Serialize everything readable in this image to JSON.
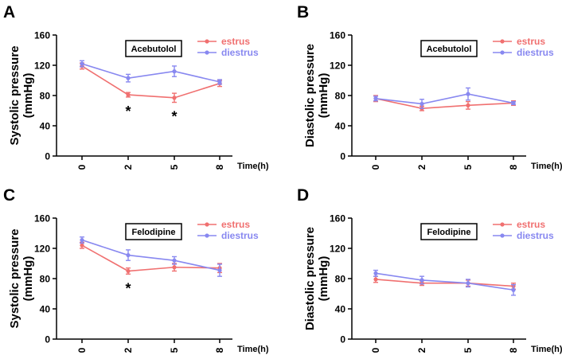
{
  "colors": {
    "estrus": "#f07070",
    "diestrus": "#8888f0",
    "axis": "#000000"
  },
  "chart_data": [
    {
      "panel": "A",
      "type": "line",
      "drug": "Acebutolol",
      "ylabel_line1": "Systolic pressure",
      "ylabel_line2": "(mmHg)",
      "xlabel": "Time(h)",
      "categories": [
        "0",
        "2",
        "5",
        "8"
      ],
      "ylim": [
        0,
        160
      ],
      "yticks": [
        "0",
        "40",
        "80",
        "120",
        "160"
      ],
      "series": [
        {
          "name": "estrus",
          "values": [
            119,
            81,
            77,
            96
          ],
          "errors": [
            4,
            3,
            6,
            4
          ]
        },
        {
          "name": "diestrus",
          "values": [
            122,
            103,
            112,
            98
          ],
          "errors": [
            4,
            5,
            7,
            3
          ]
        }
      ],
      "significance": [
        {
          "category": "2",
          "label": "*"
        },
        {
          "category": "5",
          "label": "*"
        }
      ]
    },
    {
      "panel": "B",
      "type": "line",
      "drug": "Acebutolol",
      "ylabel_line1": "Diastolic pressure",
      "ylabel_line2": "(mmHg)",
      "xlabel": "Time(h)",
      "categories": [
        "0",
        "2",
        "5",
        "8"
      ],
      "ylim": [
        0,
        160
      ],
      "yticks": [
        "0",
        "40",
        "80",
        "120",
        "160"
      ],
      "series": [
        {
          "name": "estrus",
          "values": [
            76,
            63,
            67,
            70
          ],
          "errors": [
            4,
            3,
            5,
            3
          ]
        },
        {
          "name": "diestrus",
          "values": [
            76,
            69,
            82,
            70
          ],
          "errors": [
            3,
            6,
            8,
            2
          ]
        }
      ],
      "significance": []
    },
    {
      "panel": "C",
      "type": "line",
      "drug": "Felodipine",
      "ylabel_line1": "Systolic pressure",
      "ylabel_line2": "(mmHg)",
      "xlabel": "Time(h)",
      "categories": [
        "0",
        "2",
        "5",
        "8"
      ],
      "ylim": [
        0,
        160
      ],
      "yticks": [
        "0",
        "40",
        "80",
        "120",
        "160"
      ],
      "series": [
        {
          "name": "estrus",
          "values": [
            124,
            90,
            95,
            94
          ],
          "errors": [
            4,
            4,
            5,
            6
          ]
        },
        {
          "name": "diestrus",
          "values": [
            131,
            111,
            104,
            91
          ],
          "errors": [
            4,
            7,
            5,
            8
          ]
        }
      ],
      "significance": [
        {
          "category": "2",
          "label": "*"
        }
      ]
    },
    {
      "panel": "D",
      "type": "line",
      "drug": "Felodipine",
      "ylabel_line1": "Diastolic pressure",
      "ylabel_line2": "(mmHg)",
      "xlabel": "Time(h)",
      "categories": [
        "0",
        "2",
        "5",
        "8"
      ],
      "ylim": [
        0,
        160
      ],
      "yticks": [
        "0",
        "40",
        "80",
        "120",
        "160"
      ],
      "series": [
        {
          "name": "estrus",
          "values": [
            79,
            74,
            74,
            70
          ],
          "errors": [
            4,
            3,
            4,
            4
          ]
        },
        {
          "name": "diestrus",
          "values": [
            87,
            78,
            74,
            65
          ],
          "errors": [
            4,
            5,
            5,
            7
          ]
        }
      ],
      "significance": []
    }
  ]
}
